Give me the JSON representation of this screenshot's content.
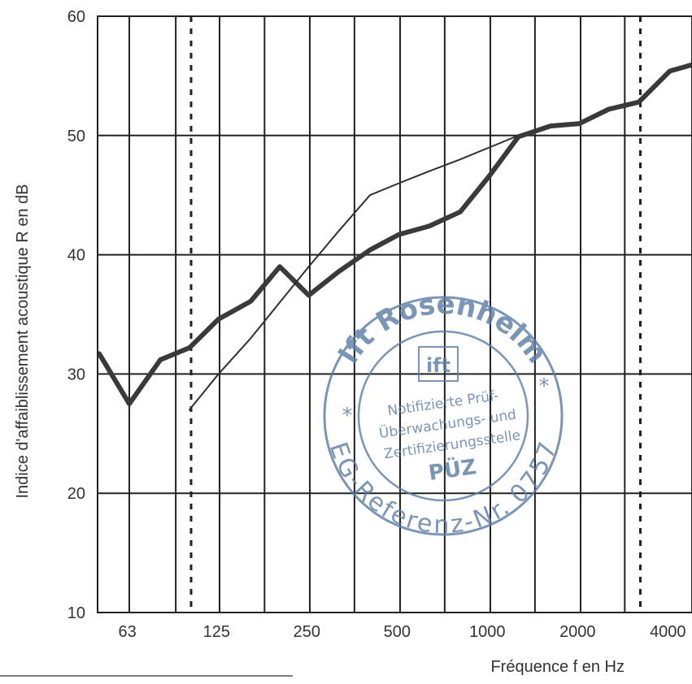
{
  "chart_data": {
    "type": "line",
    "xlabel": "Fréquence f en Hz",
    "ylabel": "Indice d'affaiblissement acoustique  R en dB",
    "y_ticks": [
      "10",
      "20",
      "30",
      "40",
      "50",
      "60"
    ],
    "ylim": [
      10,
      60
    ],
    "x_tick_labels": [
      "63",
      "125",
      "250",
      "500",
      "1000",
      "2000",
      "4000"
    ],
    "x_scale": "log (third-octave bands)",
    "grid": true,
    "series": [
      {
        "style": "thick",
        "x": [
          50,
          63,
          80,
          100,
          125,
          160,
          200,
          250,
          315,
          400,
          500,
          630,
          800,
          1000,
          1250,
          1600,
          2000,
          2500,
          3150,
          4000,
          5000
        ],
        "y": [
          31.7,
          27.5,
          31.2,
          32.2,
          34.6,
          36.1,
          39.0,
          36.6,
          38.6,
          40.4,
          41.7,
          42.4,
          43.6,
          46.6,
          49.9,
          50.8,
          51.0,
          52.2,
          52.8,
          55.4,
          56.1
        ]
      },
      {
        "style": "thin",
        "x": [
          100,
          125,
          160,
          200,
          250,
          315,
          400,
          500,
          630,
          800,
          1000,
          1250
        ],
        "y": [
          27,
          30,
          33,
          36,
          39,
          42,
          45,
          46,
          47,
          48,
          49,
          50
        ]
      }
    ],
    "dotted_reference_lines_x": [
      100,
      3150
    ],
    "colors": {
      "thick_line": "#3a3a3a",
      "thin_line": "#2f2f2f",
      "grid": "#222222",
      "stamp": "#5d7ea6"
    }
  },
  "stamp": {
    "top_text": "ift Rosenheim",
    "logo": "ift",
    "line1": "Notifizierte Prüf-",
    "line2": "Überwachungs- und",
    "line3": "Zertifizierungsstelle",
    "line4": "PÜZ",
    "bottom_text": "EG-Referenz-Nr. 0757",
    "star": "*"
  }
}
